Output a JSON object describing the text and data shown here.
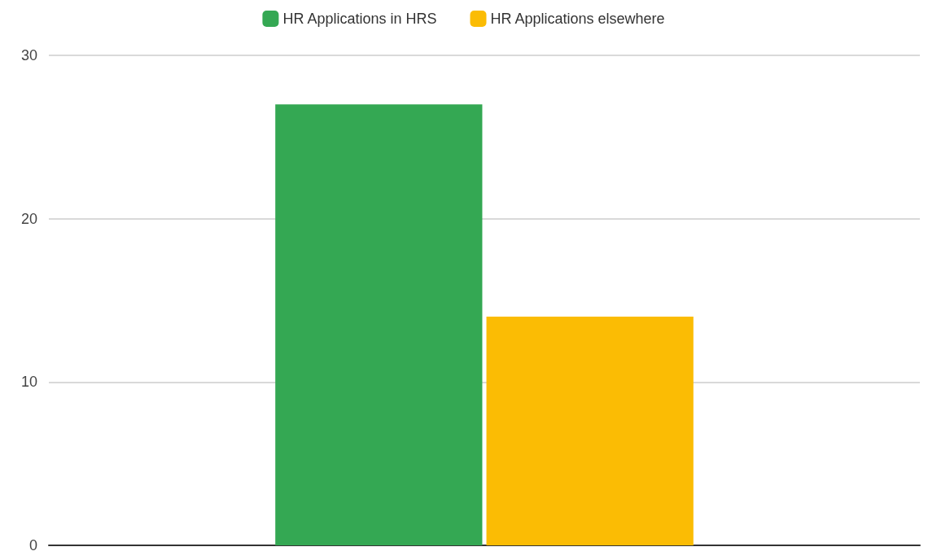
{
  "chart_data": {
    "type": "bar",
    "categories": [
      null
    ],
    "series": [
      {
        "name": "HR Applications in HRS",
        "color": "#34a853",
        "values": [
          27
        ]
      },
      {
        "name": "HR Applications elsewhere",
        "color": "#fbbc04",
        "values": [
          14
        ]
      }
    ],
    "ylim": [
      0,
      30
    ],
    "yticks": [
      0,
      10,
      20,
      30
    ],
    "grid": "y",
    "legend": "top"
  }
}
